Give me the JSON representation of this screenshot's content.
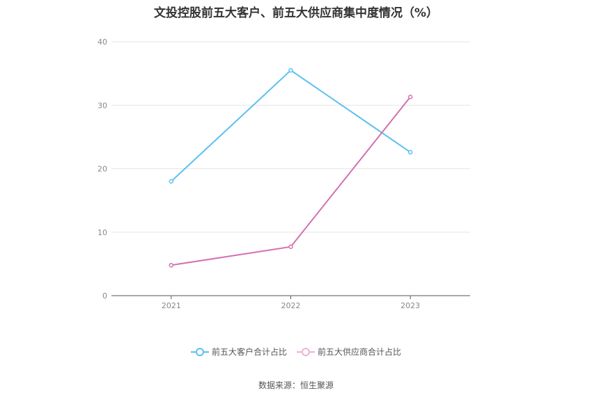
{
  "chart_data": {
    "type": "line",
    "title": "文投控股前五大客户、前五大供应商集中度情况（%）",
    "categories": [
      "2021",
      "2022",
      "2023"
    ],
    "ylim": [
      0,
      40
    ],
    "yticks": [
      0,
      10,
      20,
      30,
      40
    ],
    "grid": true,
    "legend_position": "bottom",
    "series": [
      {
        "name": "前五大客户合计占比",
        "values": [
          18.0,
          35.5,
          22.6
        ],
        "color": "#5bc0f0"
      },
      {
        "name": "前五大供应商合计占比",
        "values": [
          4.8,
          7.7,
          31.3
        ],
        "color": "#d470b0"
      }
    ]
  },
  "legend": {
    "items": [
      {
        "label": "前五大客户合计占比",
        "color": "#5bc0f0"
      },
      {
        "label": "前五大供应商合计占比",
        "color": "#f0b0d8"
      }
    ]
  },
  "source": "数据来源：恒生聚源"
}
